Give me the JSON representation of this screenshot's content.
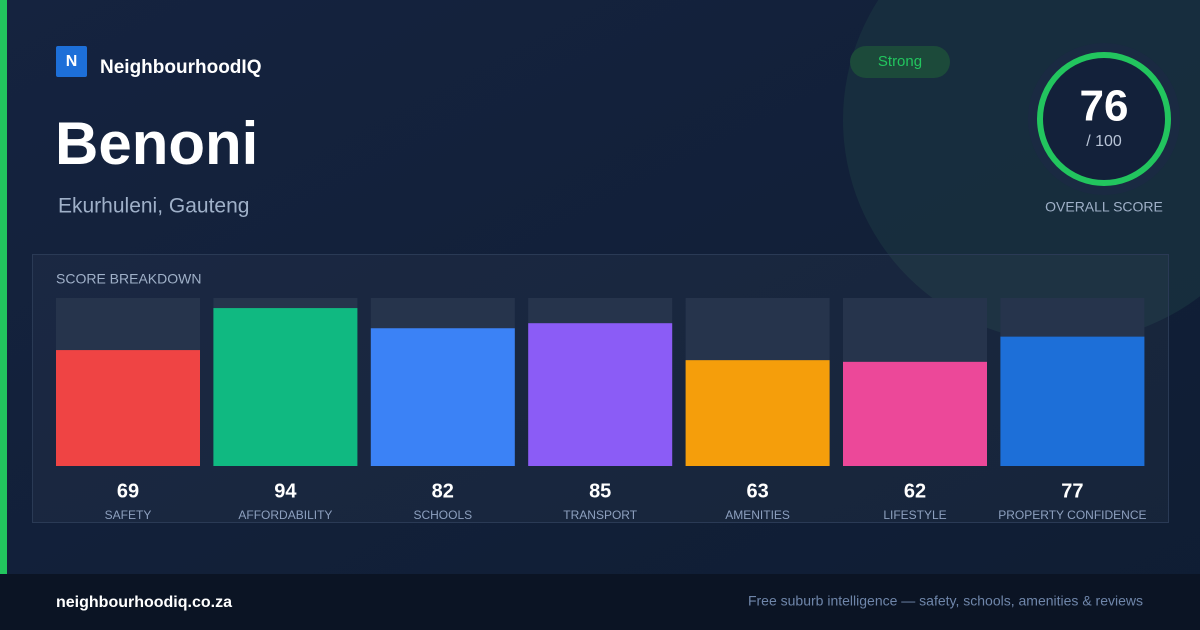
{
  "header": {
    "logo": "N",
    "brand": "NeighbourhoodIQ",
    "suburb": "Benoni",
    "location": "Ekurhuleni, Gauteng",
    "badge": "Strong"
  },
  "overall": {
    "score": 76,
    "out_of": "/ 100",
    "label": "OVERALL SCORE"
  },
  "chart_data": {
    "type": "bar",
    "title": "SCORE BREAKDOWN",
    "categories": [
      "SAFETY",
      "AFFORDABILITY",
      "SCHOOLS",
      "TRANSPORT",
      "AMENITIES",
      "LIFESTYLE",
      "PROPERTY CONFIDENCE"
    ],
    "values": [
      69,
      94,
      82,
      85,
      63,
      62,
      77
    ],
    "colors": [
      "#ef4444",
      "#10b981",
      "#3b82f6",
      "#8b5cf6",
      "#f59e0b",
      "#ec4899",
      "#1d6fd8"
    ],
    "ylim": [
      0,
      100
    ]
  },
  "footer": {
    "site": "neighbourhoodiq.co.za",
    "tagline": "Free suburb intelligence — safety, schools, amenities & reviews"
  }
}
